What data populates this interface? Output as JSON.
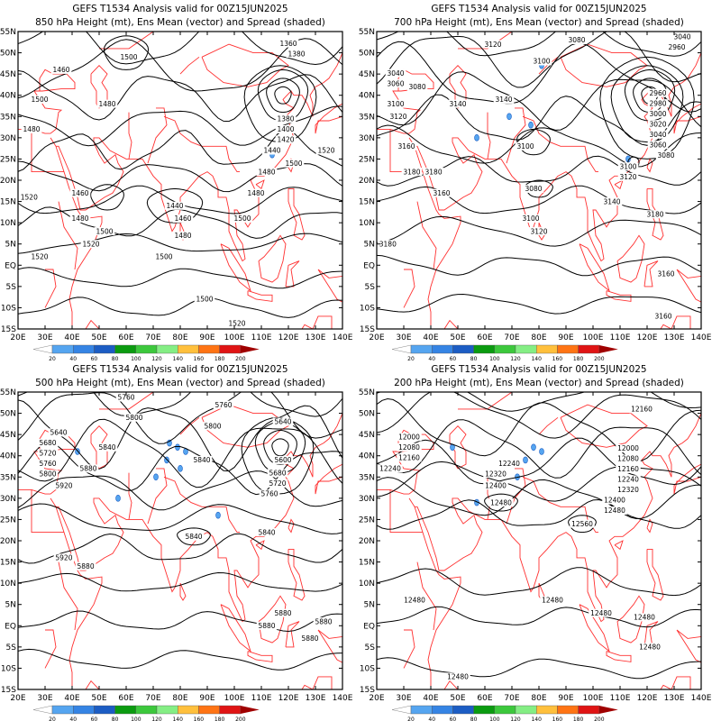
{
  "axes": {
    "lon_labels": [
      "20E",
      "30E",
      "40E",
      "50E",
      "60E",
      "70E",
      "80E",
      "90E",
      "100E",
      "110E",
      "120E",
      "130E",
      "140E"
    ],
    "lon_values": [
      20,
      30,
      40,
      50,
      60,
      70,
      80,
      90,
      100,
      110,
      120,
      130,
      140
    ],
    "lat_labels": [
      "55N",
      "50N",
      "45N",
      "40N",
      "35N",
      "30N",
      "25N",
      "20N",
      "15N",
      "10N",
      "5N",
      "EQ",
      "5S",
      "10S",
      "15S"
    ],
    "lat_values": [
      55,
      50,
      45,
      40,
      35,
      30,
      25,
      20,
      15,
      10,
      5,
      0,
      -5,
      -10,
      -15
    ],
    "lon_range": [
      20,
      140
    ],
    "lat_range": [
      -15,
      55
    ]
  },
  "colorbar": {
    "labels": [
      "20",
      "40",
      "60",
      "80",
      "100",
      "120",
      "140",
      "160",
      "180",
      "200"
    ],
    "colors": [
      "#ffffff",
      "#55a5f0",
      "#3584e4",
      "#1c5dc4",
      "#0b9b10",
      "#3cc83c",
      "#84ee84",
      "#ffc03c",
      "#ff7414",
      "#e01414",
      "#a00000"
    ]
  },
  "colors": {
    "contour": "#000000",
    "coastline": "#ff3030",
    "frame": "#000000"
  },
  "panels": [
    {
      "title": "GEFS T1534 Analysis valid for 00Z15JUN2025",
      "subtitle": "850 hPa Height (mt), Ens Mean (vector) and Spread (shaded)",
      "contour_labels": [
        {
          "text": "1360",
          "lon": 120,
          "lat": 52
        },
        {
          "text": "1380",
          "lon": 123,
          "lat": 50
        },
        {
          "text": "1460",
          "lon": 36,
          "lat": 46
        },
        {
          "text": "1500",
          "lon": 61,
          "lat": 49
        },
        {
          "text": "1500",
          "lon": 28,
          "lat": 39
        },
        {
          "text": "1480",
          "lon": 53,
          "lat": 38
        },
        {
          "text": "1480",
          "lon": 25,
          "lat": 32
        },
        {
          "text": "1380",
          "lon": 119,
          "lat": 34
        },
        {
          "text": "1400",
          "lon": 119,
          "lat": 32
        },
        {
          "text": "1420",
          "lon": 119,
          "lat": 30
        },
        {
          "text": "1440",
          "lon": 114,
          "lat": 27
        },
        {
          "text": "1480",
          "lon": 112,
          "lat": 22
        },
        {
          "text": "1500",
          "lon": 122,
          "lat": 24
        },
        {
          "text": "1520",
          "lon": 134,
          "lat": 27
        },
        {
          "text": "1520",
          "lon": 24,
          "lat": 16
        },
        {
          "text": "1460",
          "lon": 43,
          "lat": 17
        },
        {
          "text": "1440",
          "lon": 78,
          "lat": 14
        },
        {
          "text": "1460",
          "lon": 81,
          "lat": 11
        },
        {
          "text": "1480",
          "lon": 43,
          "lat": 11
        },
        {
          "text": "1500",
          "lon": 52,
          "lat": 8
        },
        {
          "text": "1480",
          "lon": 81,
          "lat": 7
        },
        {
          "text": "1480",
          "lon": 108,
          "lat": 17
        },
        {
          "text": "1500",
          "lon": 103,
          "lat": 11
        },
        {
          "text": "1520",
          "lon": 47,
          "lat": 5
        },
        {
          "text": "1520",
          "lon": 28,
          "lat": 2
        },
        {
          "text": "1500",
          "lon": 74,
          "lat": 2
        },
        {
          "text": "1500",
          "lon": 89,
          "lat": -8
        },
        {
          "text": "1520",
          "lon": 101,
          "lat": -14
        }
      ],
      "spread_blobs": [
        {
          "lon": 114,
          "lat": 26
        }
      ]
    },
    {
      "title": "GEFS T1534 Analysis valid for 00Z15JUN2025",
      "subtitle": "700 hPa Height (mt), Ens Mean (vector) and Spread (shaded)",
      "contour_labels": [
        {
          "text": "3120",
          "lon": 63,
          "lat": 52
        },
        {
          "text": "3080",
          "lon": 94,
          "lat": 53
        },
        {
          "text": "3040",
          "lon": 133,
          "lat": 54
        },
        {
          "text": "2960",
          "lon": 131,
          "lat": 52
        },
        {
          "text": "3100",
          "lon": 81,
          "lat": 48
        },
        {
          "text": "3040",
          "lon": 27,
          "lat": 45
        },
        {
          "text": "3060",
          "lon": 27,
          "lat": 43
        },
        {
          "text": "3080",
          "lon": 35,
          "lat": 42
        },
        {
          "text": "3140",
          "lon": 67,
          "lat": 39
        },
        {
          "text": "3100",
          "lon": 27,
          "lat": 38
        },
        {
          "text": "3140",
          "lon": 50,
          "lat": 38
        },
        {
          "text": "3120",
          "lon": 28,
          "lat": 35
        },
        {
          "text": "2960",
          "lon": 124,
          "lat": 38
        },
        {
          "text": "2980",
          "lon": 124,
          "lat": 36.5
        },
        {
          "text": "3000",
          "lon": 124,
          "lat": 35
        },
        {
          "text": "3020",
          "lon": 124,
          "lat": 33
        },
        {
          "text": "3040",
          "lon": 124,
          "lat": 31.5
        },
        {
          "text": "3060",
          "lon": 124,
          "lat": 30
        },
        {
          "text": "3080",
          "lon": 127,
          "lat": 28.5
        },
        {
          "text": "3100",
          "lon": 75,
          "lat": 28
        },
        {
          "text": "3160",
          "lon": 31,
          "lat": 28
        },
        {
          "text": "3100",
          "lon": 113,
          "lat": 23
        },
        {
          "text": "3120",
          "lon": 113,
          "lat": 21
        },
        {
          "text": "3180",
          "lon": 34,
          "lat": 22
        },
        {
          "text": "3180",
          "lon": 40,
          "lat": 22
        },
        {
          "text": "3160",
          "lon": 44,
          "lat": 17
        },
        {
          "text": "3080",
          "lon": 78,
          "lat": 18
        },
        {
          "text": "3140",
          "lon": 107,
          "lat": 15
        },
        {
          "text": "3100",
          "lon": 77,
          "lat": 11
        },
        {
          "text": "3120",
          "lon": 80,
          "lat": 8
        },
        {
          "text": "3180",
          "lon": 123,
          "lat": 12
        },
        {
          "text": "3180",
          "lon": 22,
          "lat": 5
        },
        {
          "text": "3160",
          "lon": 127,
          "lat": -2
        },
        {
          "text": "3160",
          "lon": 126,
          "lat": -12
        }
      ],
      "spread_blobs": [
        {
          "lon": 81,
          "lat": 47
        },
        {
          "lon": 69,
          "lat": 35
        },
        {
          "lon": 77,
          "lat": 33
        },
        {
          "lon": 57,
          "lat": 30
        },
        {
          "lon": 113,
          "lat": 25
        }
      ]
    },
    {
      "title": "GEFS T1534 Analysis valid for 00Z15JUN2025",
      "subtitle": "500 hPa Height (mt), Ens Mean (vector) and Spread (shaded)",
      "contour_labels": [
        {
          "text": "5760",
          "lon": 60,
          "lat": 54
        },
        {
          "text": "5800",
          "lon": 63,
          "lat": 49
        },
        {
          "text": "5760",
          "lon": 96,
          "lat": 52
        },
        {
          "text": "5800",
          "lon": 92,
          "lat": 47
        },
        {
          "text": "5640",
          "lon": 118,
          "lat": 48
        },
        {
          "text": "5640",
          "lon": 35,
          "lat": 44
        },
        {
          "text": "5680",
          "lon": 31,
          "lat": 42
        },
        {
          "text": "5720",
          "lon": 31,
          "lat": 40.5
        },
        {
          "text": "5760",
          "lon": 31,
          "lat": 39
        },
        {
          "text": "5800",
          "lon": 31,
          "lat": 37.5
        },
        {
          "text": "5840",
          "lon": 53,
          "lat": 42
        },
        {
          "text": "5880",
          "lon": 46,
          "lat": 37
        },
        {
          "text": "5840",
          "lon": 88,
          "lat": 39
        },
        {
          "text": "5600",
          "lon": 118,
          "lat": 39
        },
        {
          "text": "5680",
          "lon": 116,
          "lat": 35
        },
        {
          "text": "5720",
          "lon": 116,
          "lat": 33.5
        },
        {
          "text": "5760",
          "lon": 113,
          "lat": 32
        },
        {
          "text": "5920",
          "lon": 37,
          "lat": 33
        },
        {
          "text": "5840",
          "lon": 112,
          "lat": 22
        },
        {
          "text": "5840",
          "lon": 85,
          "lat": 21
        },
        {
          "text": "5920",
          "lon": 37,
          "lat": 16
        },
        {
          "text": "5880",
          "lon": 45,
          "lat": 14
        },
        {
          "text": "5880",
          "lon": 118,
          "lat": 3
        },
        {
          "text": "5880",
          "lon": 112,
          "lat": 0
        },
        {
          "text": "5880",
          "lon": 133,
          "lat": 1
        },
        {
          "text": "5880",
          "lon": 128,
          "lat": -3
        }
      ],
      "spread_blobs": [
        {
          "lon": 76,
          "lat": 43
        },
        {
          "lon": 79,
          "lat": 42
        },
        {
          "lon": 82,
          "lat": 41
        },
        {
          "lon": 75,
          "lat": 39
        },
        {
          "lon": 80,
          "lat": 37
        },
        {
          "lon": 71,
          "lat": 35
        },
        {
          "lon": 94,
          "lat": 26
        },
        {
          "lon": 57,
          "lat": 30
        },
        {
          "lon": 42,
          "lat": 41
        }
      ]
    },
    {
      "title": "GEFS T1534 Analysis valid for 00Z15JUN2025",
      "subtitle": "200 hPa Height (mt), Ens Mean (vector) and Spread (shaded)",
      "contour_labels": [
        {
          "text": "12160",
          "lon": 118,
          "lat": 51
        },
        {
          "text": "12000",
          "lon": 32,
          "lat": 44
        },
        {
          "text": "12080",
          "lon": 32,
          "lat": 42
        },
        {
          "text": "12160",
          "lon": 32,
          "lat": 40
        },
        {
          "text": "12240",
          "lon": 25,
          "lat": 37
        },
        {
          "text": "12240",
          "lon": 69,
          "lat": 37
        },
        {
          "text": "12000",
          "lon": 113,
          "lat": 39
        },
        {
          "text": "12080",
          "lon": 113,
          "lat": 37.5
        },
        {
          "text": "12160",
          "lon": 113,
          "lat": 36
        },
        {
          "text": "12240",
          "lon": 113,
          "lat": 34.5
        },
        {
          "text": "12320",
          "lon": 113,
          "lat": 33
        },
        {
          "text": "12400",
          "lon": 108,
          "lat": 32
        },
        {
          "text": "12320",
          "lon": 64,
          "lat": 37
        },
        {
          "text": "12400",
          "lon": 64,
          "lat": 33
        },
        {
          "text": "12480",
          "lon": 66,
          "lat": 29
        },
        {
          "text": "12480",
          "lon": 108,
          "lat": 29
        },
        {
          "text": "12560",
          "lon": 96,
          "lat": 24
        },
        {
          "text": "12480",
          "lon": 34,
          "lat": 6
        },
        {
          "text": "12480",
          "lon": 85,
          "lat": 6
        },
        {
          "text": "12480",
          "lon": 103,
          "lat": 3
        },
        {
          "text": "12480",
          "lon": 119,
          "lat": 2
        },
        {
          "text": "12480",
          "lon": 121,
          "lat": -5
        },
        {
          "text": "12480",
          "lon": 50,
          "lat": -12
        }
      ],
      "spread_blobs": [
        {
          "lon": 78,
          "lat": 42
        },
        {
          "lon": 81,
          "lat": 41
        },
        {
          "lon": 75,
          "lat": 39
        },
        {
          "lon": 72,
          "lat": 35
        },
        {
          "lon": 57,
          "lat": 29
        },
        {
          "lon": 48,
          "lat": 42
        }
      ]
    }
  ]
}
